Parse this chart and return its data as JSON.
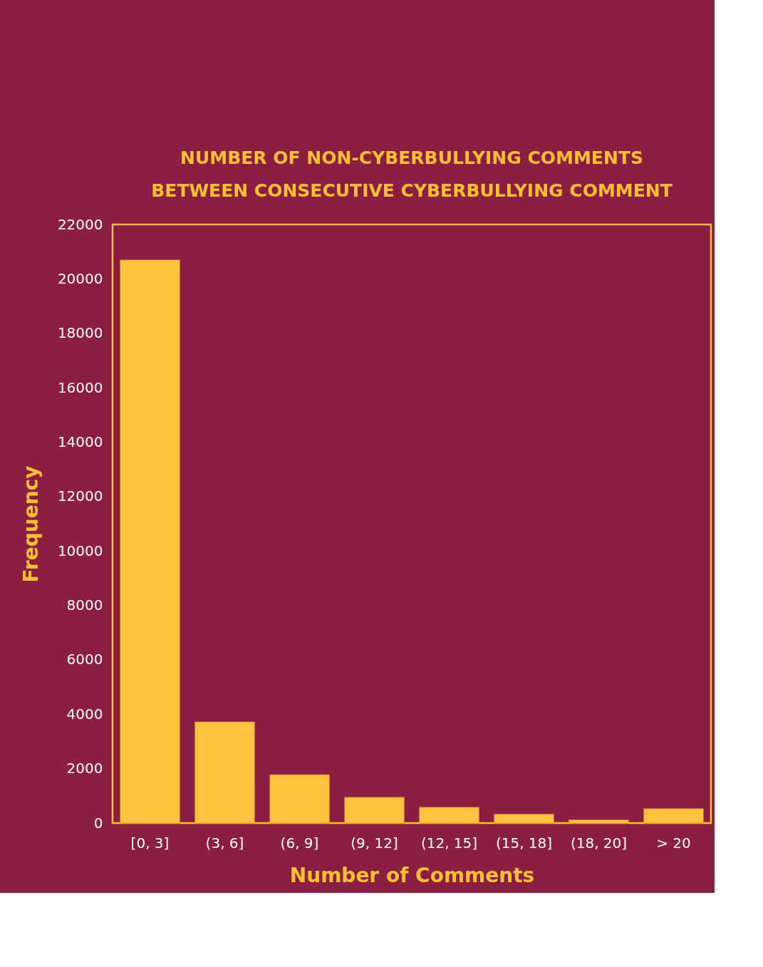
{
  "chart_data": {
    "type": "bar",
    "title": "NUMBER OF NON-CYBERBULLYING COMMENTS\nBETWEEN CONSECUTIVE CYBERBULLYING COMMENT",
    "xlabel": "Number of Comments",
    "ylabel": "Frequency",
    "categories": [
      "[0, 3]",
      "(3, 6]",
      "(6, 9]",
      "(9, 12]",
      "(12, 15]",
      "(15, 18]",
      "(18, 20]",
      "> 20"
    ],
    "values": [
      20700,
      3720,
      1780,
      950,
      580,
      330,
      120,
      530
    ],
    "color": "#ffc43d",
    "ylim": [
      0,
      22000
    ],
    "yticks": [
      0,
      2000,
      4000,
      6000,
      8000,
      10000,
      12000,
      14000,
      16000,
      18000,
      20000,
      22000
    ],
    "grid": false
  }
}
